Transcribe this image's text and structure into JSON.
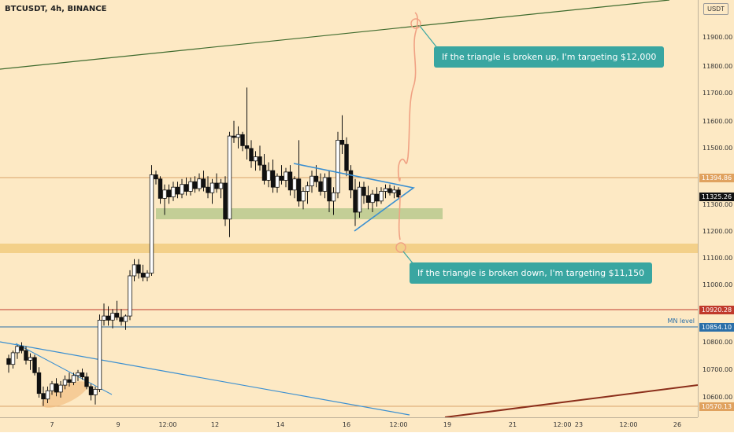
{
  "chart_header": {
    "title": "BTCUSDT, 4h, BINANCE",
    "currency": "USDT"
  },
  "colors": {
    "background": "#fde9c4",
    "candle_body": "#111111",
    "candle_up": "#ffffff",
    "triangle": "#3a8fd1",
    "path": "#f0a183",
    "zone_green": "#b9c98e",
    "zone_orange": "#f2cf86",
    "callout": "#39a6a1",
    "hline_red": "#c0392b",
    "hline_blue": "#2b6fa8",
    "hline_orange": "#d9a36a"
  },
  "y_axis": {
    "ticks": [
      "11900.00",
      "11800.00",
      "11700.00",
      "11600.00",
      "11500.00",
      "11300.00",
      "11200.00",
      "11100.00",
      "11000.00",
      "10900.00",
      "10800.00",
      "10700.00",
      "10600.00"
    ],
    "badges": [
      {
        "label": "11394.86",
        "bg": "#e0a25f",
        "fg": "#ffffff"
      },
      {
        "label": "11325.26",
        "bg": "#111111",
        "fg": "#ffffff"
      },
      {
        "label": "10920.28",
        "bg": "#c0392b",
        "fg": "#ffffff"
      },
      {
        "label": "10854.10",
        "bg": "#2b6fa8",
        "fg": "#ffffff"
      },
      {
        "label": "10570.13",
        "bg": "#e0a25f",
        "fg": "#ffffff"
      }
    ]
  },
  "x_axis": {
    "ticks": [
      "7",
      "9",
      "12:00",
      "12",
      "14",
      "16",
      "12:00",
      "19",
      "21",
      "12:00",
      "23",
      "12:00",
      "26"
    ]
  },
  "annotations": {
    "mn_level": "MN level",
    "callout_up": "If the triangle is broken up, I'm targeting $12,000",
    "callout_down": "If the triangle is broken down, I'm targeting $11,150"
  },
  "candles": [
    [
      11.0,
      10741,
      10755,
      10690,
      10720
    ],
    [
      16.5,
      10720,
      10770,
      10705,
      10762
    ],
    [
      22.0,
      10762,
      10790,
      10740,
      10785
    ],
    [
      27.5,
      10785,
      10800,
      10760,
      10770
    ],
    [
      33.0,
      10770,
      10785,
      10720,
      10735
    ],
    [
      38.5,
      10735,
      10760,
      10700,
      10745
    ],
    [
      44.0,
      10745,
      10755,
      10680,
      10690
    ],
    [
      49.5,
      10690,
      10710,
      10600,
      10615
    ],
    [
      55.0,
      10615,
      10640,
      10570,
      10595
    ],
    [
      60.5,
      10595,
      10640,
      10580,
      10625
    ],
    [
      66.0,
      10625,
      10660,
      10610,
      10650
    ],
    [
      71.5,
      10650,
      10670,
      10605,
      10620
    ],
    [
      77.0,
      10620,
      10660,
      10600,
      10645
    ],
    [
      82.5,
      10645,
      10680,
      10630,
      10665
    ],
    [
      88.0,
      10665,
      10690,
      10640,
      10655
    ],
    [
      93.5,
      10655,
      10690,
      10645,
      10680
    ],
    [
      99.0,
      10680,
      10700,
      10660,
      10690
    ],
    [
      104.5,
      10690,
      10705,
      10665,
      10675
    ],
    [
      110.0,
      10675,
      10690,
      10630,
      10640
    ],
    [
      115.5,
      10640,
      10650,
      10590,
      10610
    ],
    [
      121.0,
      10610,
      10640,
      10575,
      10630
    ],
    [
      126.5,
      10630,
      10900,
      10620,
      10880
    ],
    [
      132.0,
      10880,
      10940,
      10860,
      10895
    ],
    [
      137.5,
      10895,
      10930,
      10860,
      10880
    ],
    [
      143.0,
      10880,
      10920,
      10850,
      10905
    ],
    [
      148.5,
      10905,
      10950,
      10880,
      10890
    ],
    [
      154.0,
      10890,
      10920,
      10860,
      10875
    ],
    [
      159.5,
      10875,
      10900,
      10845,
      10895
    ],
    [
      165.0,
      10895,
      11060,
      10880,
      11040
    ],
    [
      170.5,
      11040,
      11100,
      11020,
      11080
    ],
    [
      176.0,
      11080,
      11100,
      11030,
      11050
    ],
    [
      181.5,
      11050,
      11080,
      11020,
      11035
    ],
    [
      187.0,
      11035,
      11060,
      11020,
      11050
    ],
    [
      192.5,
      11050,
      11440,
      11040,
      11405
    ],
    [
      198.0,
      11405,
      11420,
      11370,
      11390
    ],
    [
      203.5,
      11390,
      11400,
      11300,
      11320
    ],
    [
      209.0,
      11320,
      11370,
      11260,
      11350
    ],
    [
      214.5,
      11350,
      11370,
      11300,
      11325
    ],
    [
      220.0,
      11325,
      11380,
      11310,
      11360
    ],
    [
      225.5,
      11360,
      11380,
      11320,
      11335
    ],
    [
      231.0,
      11335,
      11390,
      11320,
      11370
    ],
    [
      236.5,
      11370,
      11395,
      11330,
      11345
    ],
    [
      242.0,
      11345,
      11395,
      11330,
      11380
    ],
    [
      247.5,
      11380,
      11400,
      11340,
      11355
    ],
    [
      253.0,
      11355,
      11410,
      11345,
      11390
    ],
    [
      258.5,
      11390,
      11420,
      11345,
      11360
    ],
    [
      264.0,
      11360,
      11400,
      11320,
      11340
    ],
    [
      269.5,
      11340,
      11390,
      11300,
      11375
    ],
    [
      275.0,
      11375,
      11410,
      11340,
      11355
    ],
    [
      280.5,
      11355,
      11390,
      11320,
      11375
    ],
    [
      286.0,
      11375,
      11400,
      11220,
      11245
    ],
    [
      291.5,
      11245,
      11560,
      11180,
      11545
    ],
    [
      297.0,
      11545,
      11600,
      11520,
      11540
    ],
    [
      302.5,
      11540,
      11580,
      11500,
      11550
    ],
    [
      308.0,
      11550,
      11560,
      11490,
      11510
    ],
    [
      313.5,
      11510,
      11720,
      11460,
      11500
    ],
    [
      319.0,
      11500,
      11530,
      11430,
      11455
    ],
    [
      324.5,
      11455,
      11490,
      11420,
      11470
    ],
    [
      330.0,
      11470,
      11510,
      11420,
      11440
    ],
    [
      335.5,
      11440,
      11480,
      11370,
      11385
    ],
    [
      341.0,
      11385,
      11450,
      11360,
      11420
    ],
    [
      346.5,
      11420,
      11460,
      11340,
      11360
    ],
    [
      352.0,
      11360,
      11410,
      11340,
      11400
    ],
    [
      357.5,
      11400,
      11440,
      11370,
      11385
    ],
    [
      363.0,
      11385,
      11430,
      11360,
      11415
    ],
    [
      368.5,
      11415,
      11440,
      11330,
      11350
    ],
    [
      374.0,
      11350,
      11400,
      11320,
      11390
    ],
    [
      379.5,
      11390,
      11530,
      11290,
      11310
    ],
    [
      385.0,
      11310,
      11360,
      11280,
      11345
    ],
    [
      390.5,
      11345,
      11380,
      11300,
      11365
    ],
    [
      396.0,
      11365,
      11420,
      11340,
      11400
    ],
    [
      401.5,
      11400,
      11440,
      11360,
      11380
    ],
    [
      407.0,
      11380,
      11410,
      11330,
      11345
    ],
    [
      412.5,
      11345,
      11410,
      11320,
      11395
    ],
    [
      418.0,
      11395,
      11420,
      11270,
      11310
    ],
    [
      423.5,
      11310,
      11360,
      11260,
      11340
    ],
    [
      429.0,
      11340,
      11560,
      11320,
      11530
    ],
    [
      434.5,
      11530,
      11620,
      11480,
      11515
    ],
    [
      440.0,
      11515,
      11540,
      11400,
      11420
    ],
    [
      445.5,
      11420,
      11440,
      11320,
      11350
    ],
    [
      451.0,
      11350,
      11390,
      11220,
      11270
    ],
    [
      456.5,
      11270,
      11380,
      11250,
      11360
    ],
    [
      462.0,
      11360,
      11380,
      11300,
      11330
    ],
    [
      467.5,
      11330,
      11365,
      11280,
      11305
    ],
    [
      473.0,
      11305,
      11350,
      11270,
      11335
    ],
    [
      478.5,
      11335,
      11360,
      11290,
      11310
    ],
    [
      484.0,
      11310,
      11360,
      11300,
      11345
    ],
    [
      489.5,
      11345,
      11370,
      11320,
      11355
    ],
    [
      495.0,
      11355,
      11370,
      11330,
      11340
    ],
    [
      500.5,
      11340,
      11365,
      11320,
      11350
    ],
    [
      506.0,
      11350,
      11360,
      11320,
      11325
    ]
  ]
}
